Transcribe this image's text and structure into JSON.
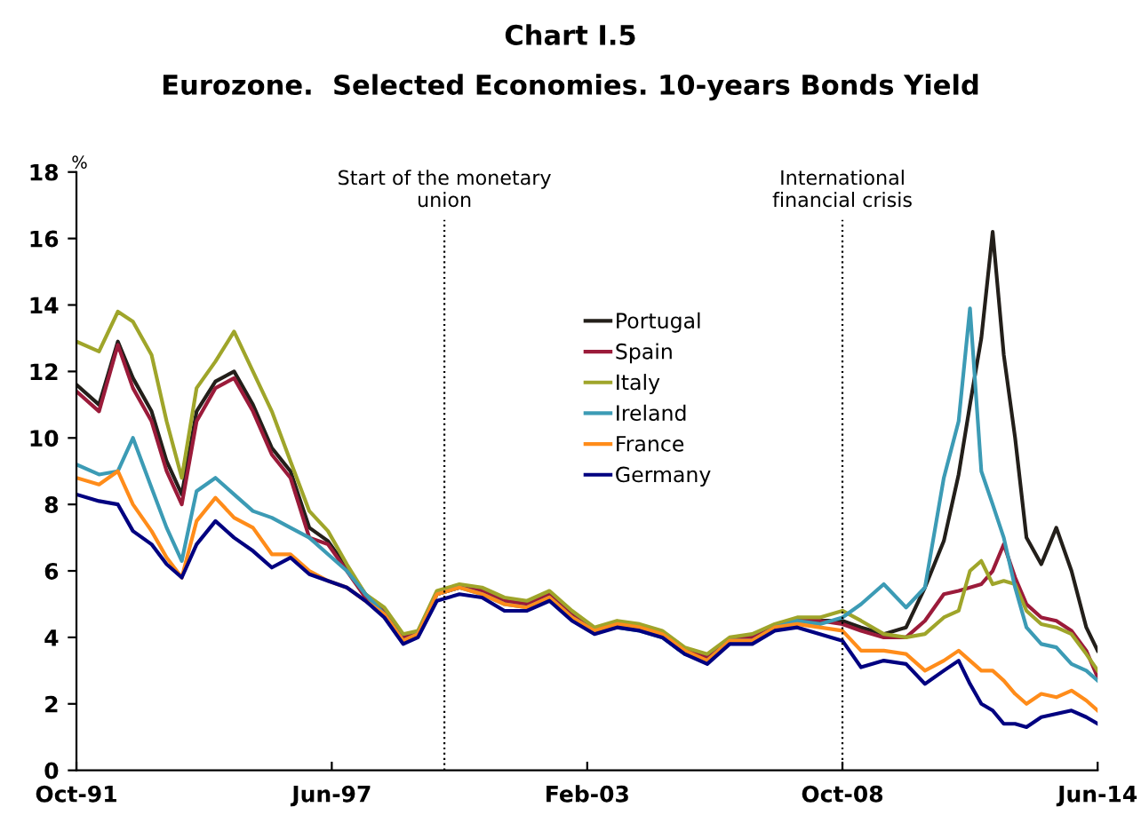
{
  "chart_data": {
    "type": "line",
    "title": "Chart I.5",
    "subtitle": "Eurozone.  Selected Economies. 10-years Bonds Yield",
    "ylabel": "%",
    "x": [
      "1991-10",
      "1992-04",
      "1992-09",
      "1993-01",
      "1993-06",
      "1993-10",
      "1994-02",
      "1994-06",
      "1994-11",
      "1995-04",
      "1995-09",
      "1996-02",
      "1996-07",
      "1996-12",
      "1997-05",
      "1997-10",
      "1998-03",
      "1998-08",
      "1999-01",
      "1999-05",
      "1999-10",
      "2000-04",
      "2000-10",
      "2001-04",
      "2001-10",
      "2002-04",
      "2002-10",
      "2003-04",
      "2003-10",
      "2004-04",
      "2004-10",
      "2005-04",
      "2005-10",
      "2006-04",
      "2006-10",
      "2007-04",
      "2007-10",
      "2008-04",
      "2008-10",
      "2009-03",
      "2009-09",
      "2010-03",
      "2010-08",
      "2011-01",
      "2011-05",
      "2011-08",
      "2011-11",
      "2012-02",
      "2012-05",
      "2012-08",
      "2012-11",
      "2013-03",
      "2013-07",
      "2013-11",
      "2014-03",
      "2014-06"
    ],
    "series": [
      {
        "name": "Portugal",
        "color": "#231f1a",
        "values": [
          11.6,
          11.0,
          12.9,
          11.8,
          10.8,
          9.3,
          8.3,
          10.8,
          11.7,
          12.0,
          11.0,
          9.7,
          9.0,
          7.3,
          6.9,
          6.1,
          5.3,
          4.8,
          4.0,
          4.1,
          5.3,
          5.5,
          5.4,
          5.1,
          5.0,
          5.3,
          4.7,
          4.2,
          4.4,
          4.3,
          4.1,
          3.6,
          3.4,
          3.9,
          4.0,
          4.3,
          4.5,
          4.5,
          4.5,
          4.3,
          4.1,
          4.3,
          5.5,
          6.9,
          8.9,
          11.0,
          13.0,
          16.2,
          12.5,
          10.0,
          7.0,
          6.2,
          7.3,
          6.0,
          4.3,
          3.6
        ]
      },
      {
        "name": "Spain",
        "color": "#9b1b3a",
        "values": [
          11.4,
          10.8,
          12.8,
          11.5,
          10.5,
          9.0,
          8.0,
          10.5,
          11.5,
          11.8,
          10.8,
          9.5,
          8.8,
          7.0,
          6.8,
          6.0,
          5.2,
          4.8,
          4.0,
          4.1,
          5.3,
          5.5,
          5.4,
          5.1,
          5.0,
          5.3,
          4.7,
          4.2,
          4.4,
          4.3,
          4.1,
          3.6,
          3.4,
          3.9,
          4.0,
          4.3,
          4.5,
          4.5,
          4.4,
          4.2,
          4.0,
          4.0,
          4.5,
          5.3,
          5.4,
          5.5,
          5.6,
          6.0,
          6.8,
          5.8,
          5.0,
          4.6,
          4.5,
          4.2,
          3.6,
          2.8
        ]
      },
      {
        "name": "Italy",
        "color": "#9fa52a",
        "values": [
          12.9,
          12.6,
          13.8,
          13.5,
          12.5,
          10.5,
          8.8,
          11.5,
          12.3,
          13.2,
          12.0,
          10.8,
          9.3,
          7.8,
          7.2,
          6.2,
          5.3,
          4.9,
          4.1,
          4.2,
          5.4,
          5.6,
          5.5,
          5.2,
          5.1,
          5.4,
          4.8,
          4.3,
          4.5,
          4.4,
          4.2,
          3.7,
          3.5,
          4.0,
          4.1,
          4.4,
          4.6,
          4.6,
          4.8,
          4.5,
          4.1,
          4.0,
          4.1,
          4.6,
          4.8,
          6.0,
          6.3,
          5.6,
          5.7,
          5.6,
          4.8,
          4.4,
          4.3,
          4.1,
          3.5,
          3.0
        ]
      },
      {
        "name": "Ireland",
        "color": "#3c9bb5",
        "values": [
          9.2,
          8.9,
          9.0,
          10.0,
          8.5,
          7.3,
          6.3,
          8.4,
          8.8,
          8.3,
          7.8,
          7.6,
          7.3,
          7.0,
          6.5,
          6.0,
          5.3,
          4.7,
          3.9,
          4.1,
          5.3,
          5.5,
          5.3,
          5.0,
          4.9,
          5.2,
          4.6,
          4.2,
          4.3,
          4.2,
          4.0,
          3.5,
          3.3,
          3.9,
          3.9,
          4.3,
          4.5,
          4.4,
          4.6,
          5.0,
          5.6,
          4.9,
          5.5,
          8.8,
          10.5,
          13.9,
          9.0,
          8.0,
          7.0,
          5.5,
          4.3,
          3.8,
          3.7,
          3.2,
          3.0,
          2.7
        ]
      },
      {
        "name": "France",
        "color": "#ff8c1a",
        "values": [
          8.8,
          8.6,
          9.0,
          8.0,
          7.2,
          6.4,
          5.8,
          7.5,
          8.2,
          7.6,
          7.3,
          6.5,
          6.5,
          6.0,
          5.7,
          5.5,
          5.1,
          4.7,
          3.9,
          4.1,
          5.3,
          5.5,
          5.3,
          5.0,
          4.9,
          5.2,
          4.6,
          4.2,
          4.4,
          4.3,
          4.1,
          3.6,
          3.3,
          3.9,
          3.9,
          4.3,
          4.4,
          4.3,
          4.2,
          3.6,
          3.6,
          3.5,
          3.0,
          3.3,
          3.6,
          3.3,
          3.0,
          3.0,
          2.7,
          2.3,
          2.0,
          2.3,
          2.2,
          2.4,
          2.1,
          1.8
        ]
      },
      {
        "name": "Germany",
        "color": "#000080",
        "values": [
          8.3,
          8.1,
          8.0,
          7.2,
          6.8,
          6.2,
          5.8,
          6.8,
          7.5,
          7.0,
          6.6,
          6.1,
          6.4,
          5.9,
          5.7,
          5.5,
          5.1,
          4.6,
          3.8,
          4.0,
          5.1,
          5.3,
          5.2,
          4.8,
          4.8,
          5.1,
          4.5,
          4.1,
          4.3,
          4.2,
          4.0,
          3.5,
          3.2,
          3.8,
          3.8,
          4.2,
          4.3,
          4.1,
          3.9,
          3.1,
          3.3,
          3.2,
          2.6,
          3.0,
          3.3,
          2.6,
          2.0,
          1.8,
          1.4,
          1.4,
          1.3,
          1.6,
          1.7,
          1.8,
          1.6,
          1.4
        ]
      }
    ],
    "xlim": [
      "1991-10",
      "2014-06"
    ],
    "xticks": [
      {
        "value": "1991-10",
        "label": "Oct-91"
      },
      {
        "value": "1997-06",
        "label": "Jun-97"
      },
      {
        "value": "2003-02",
        "label": "Feb-03"
      },
      {
        "value": "2008-10",
        "label": "Oct-08"
      },
      {
        "value": "2014-06",
        "label": "Jun-14"
      }
    ],
    "ylim": [
      0,
      18
    ],
    "yticks": [
      0,
      2,
      4,
      6,
      8,
      10,
      12,
      14,
      16,
      18
    ],
    "ref_lines": [
      {
        "axis": "x",
        "value": "1999-12",
        "label": "Start of the monetary\nunion",
        "color": "#000000",
        "line_style": "dotted"
      },
      {
        "axis": "x",
        "value": "2008-10",
        "label": "International\nfinancial crisis",
        "color": "#000000",
        "line_style": "dotted"
      }
    ],
    "grid": false,
    "legend": "center",
    "marker": "none",
    "line_style": "solid"
  }
}
